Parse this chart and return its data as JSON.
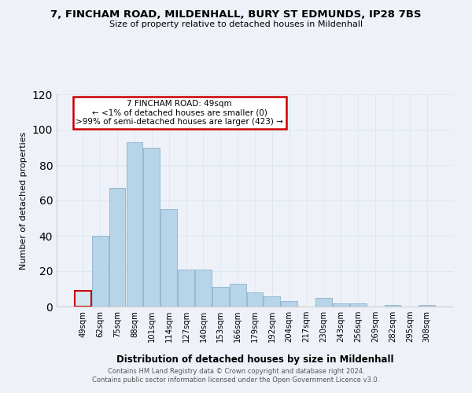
{
  "title": "7, FINCHAM ROAD, MILDENHALL, BURY ST EDMUNDS, IP28 7BS",
  "subtitle": "Size of property relative to detached houses in Mildenhall",
  "xlabel": "Distribution of detached houses by size in Mildenhall",
  "ylabel": "Number of detached properties",
  "bar_labels": [
    "49sqm",
    "62sqm",
    "75sqm",
    "88sqm",
    "101sqm",
    "114sqm",
    "127sqm",
    "140sqm",
    "153sqm",
    "166sqm",
    "179sqm",
    "192sqm",
    "204sqm",
    "217sqm",
    "230sqm",
    "243sqm",
    "256sqm",
    "269sqm",
    "282sqm",
    "295sqm",
    "308sqm"
  ],
  "bar_values": [
    9,
    40,
    67,
    93,
    90,
    55,
    21,
    21,
    11,
    13,
    8,
    6,
    3,
    0,
    5,
    2,
    2,
    0,
    1,
    0,
    1
  ],
  "bar_color": "#b8d4e8",
  "bar_color_highlight": "#d4e6f2",
  "highlight_bar_index": 0,
  "ylim": [
    0,
    120
  ],
  "yticks": [
    0,
    20,
    40,
    60,
    80,
    100,
    120
  ],
  "annotation_box_text": "7 FINCHAM ROAD: 49sqm\n← <1% of detached houses are smaller (0)\n>99% of semi-detached houses are larger (423) →",
  "annotation_box_color": "#cc0000",
  "footer_line1": "Contains HM Land Registry data © Crown copyright and database right 2024.",
  "footer_line2": "Contains public sector information licensed under the Open Government Licence v3.0.",
  "grid_color": "#dce8f0",
  "background_color": "#eef2f8"
}
